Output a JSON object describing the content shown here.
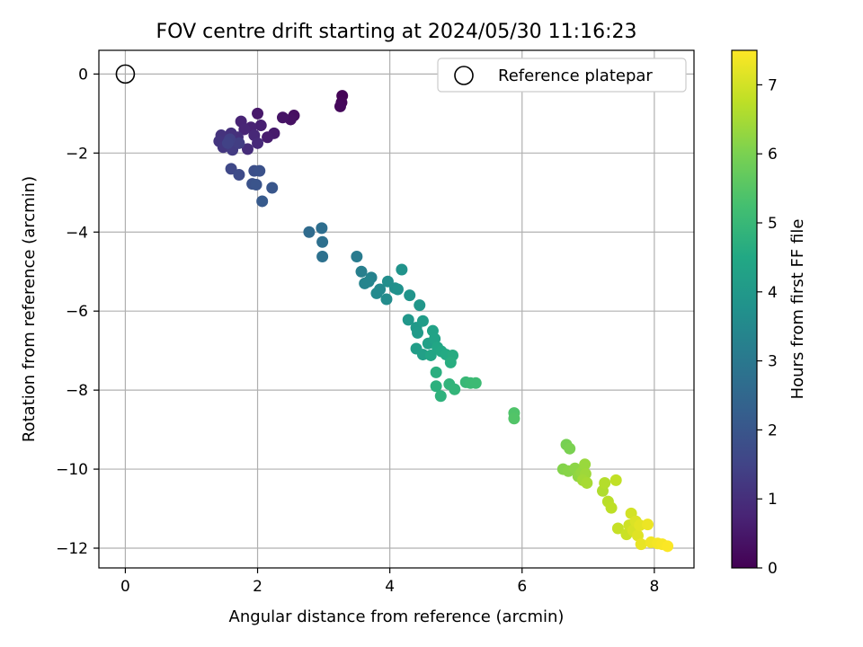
{
  "chart_data": {
    "type": "scatter",
    "title": "FOV centre drift starting at 2024/05/30 11:16:23",
    "xlabel": "Angular distance from reference (arcmin)",
    "ylabel": "Rotation from reference (arcmin)",
    "xlim": [
      -0.4,
      8.6
    ],
    "ylim": [
      -12.5,
      0.6
    ],
    "xticks": [
      0,
      2,
      4,
      6,
      8
    ],
    "yticks": [
      0,
      -2,
      -4,
      -6,
      -8,
      -10,
      -12
    ],
    "xtick_labels": [
      "0",
      "2",
      "4",
      "6",
      "8"
    ],
    "ytick_labels": [
      "0",
      "−2",
      "−4",
      "−6",
      "−8",
      "−10",
      "−12"
    ],
    "grid": true,
    "legend": {
      "placement": "top-right",
      "entries": [
        {
          "label": "Reference platepar",
          "marker": "open-circle"
        }
      ]
    },
    "reference_point": {
      "x": 0,
      "y": 0
    },
    "colorbar": {
      "label": "Hours from first FF file",
      "colormap": "viridis",
      "range": [
        0,
        7.5
      ],
      "ticks": [
        0,
        1,
        2,
        3,
        4,
        5,
        6,
        7
      ],
      "tick_labels": [
        "0",
        "1",
        "2",
        "3",
        "4",
        "5",
        "6",
        "7"
      ]
    },
    "points": [
      [
        3.28,
        -0.55,
        0.05
      ],
      [
        3.27,
        -0.72,
        0.1
      ],
      [
        3.25,
        -0.82,
        0.15
      ],
      [
        2.55,
        -1.05,
        0.3
      ],
      [
        2.5,
        -1.15,
        0.35
      ],
      [
        2.38,
        -1.1,
        0.4
      ],
      [
        2.0,
        -1.0,
        0.5
      ],
      [
        2.25,
        -1.5,
        0.55
      ],
      [
        2.15,
        -1.6,
        0.6
      ],
      [
        2.05,
        -1.3,
        0.65
      ],
      [
        1.9,
        -1.35,
        0.7
      ],
      [
        1.75,
        -1.2,
        0.75
      ],
      [
        1.8,
        -1.4,
        0.8
      ],
      [
        1.95,
        -1.55,
        0.85
      ],
      [
        2.0,
        -1.75,
        0.9
      ],
      [
        1.85,
        -1.9,
        0.95
      ],
      [
        1.7,
        -1.6,
        1.0
      ],
      [
        1.6,
        -1.5,
        1.05
      ],
      [
        1.45,
        -1.55,
        1.1
      ],
      [
        1.42,
        -1.7,
        1.15
      ],
      [
        1.48,
        -1.85,
        1.2
      ],
      [
        1.62,
        -1.92,
        1.3
      ],
      [
        1.72,
        -1.75,
        1.35
      ],
      [
        1.58,
        -1.65,
        1.4
      ],
      [
        1.55,
        -1.75,
        1.45
      ],
      [
        1.6,
        -2.4,
        1.6
      ],
      [
        1.72,
        -2.55,
        1.7
      ],
      [
        1.95,
        -2.45,
        1.8
      ],
      [
        2.03,
        -2.45,
        1.85
      ],
      [
        1.92,
        -2.78,
        1.9
      ],
      [
        1.98,
        -2.8,
        1.95
      ],
      [
        2.22,
        -2.88,
        2.0
      ],
      [
        2.07,
        -3.22,
        2.1
      ],
      [
        2.78,
        -4.0,
        2.6
      ],
      [
        2.97,
        -3.9,
        2.7
      ],
      [
        2.98,
        -4.25,
        2.75
      ],
      [
        2.98,
        -4.62,
        2.8
      ],
      [
        3.5,
        -4.62,
        3.1
      ],
      [
        3.57,
        -5.0,
        3.2
      ],
      [
        3.72,
        -5.15,
        3.3
      ],
      [
        3.62,
        -5.3,
        3.35
      ],
      [
        3.68,
        -5.25,
        3.4
      ],
      [
        3.85,
        -5.45,
        3.5
      ],
      [
        3.8,
        -5.55,
        3.55
      ],
      [
        3.95,
        -5.7,
        3.6
      ],
      [
        3.97,
        -5.25,
        3.65
      ],
      [
        4.08,
        -5.42,
        3.7
      ],
      [
        4.12,
        -5.45,
        3.75
      ],
      [
        4.18,
        -4.95,
        3.8
      ],
      [
        4.3,
        -5.6,
        3.85
      ],
      [
        4.45,
        -5.85,
        3.9
      ],
      [
        4.28,
        -6.22,
        3.95
      ],
      [
        4.4,
        -6.42,
        4.0
      ],
      [
        4.42,
        -6.55,
        4.05
      ],
      [
        4.5,
        -6.25,
        4.1
      ],
      [
        4.4,
        -6.95,
        4.15
      ],
      [
        4.5,
        -7.1,
        4.2
      ],
      [
        4.58,
        -6.82,
        4.25
      ],
      [
        4.65,
        -6.5,
        4.3
      ],
      [
        4.68,
        -6.7,
        4.35
      ],
      [
        4.62,
        -7.12,
        4.4
      ],
      [
        4.72,
        -6.92,
        4.45
      ],
      [
        4.78,
        -7.02,
        4.5
      ],
      [
        4.85,
        -7.1,
        4.55
      ],
      [
        4.95,
        -7.12,
        4.6
      ],
      [
        4.92,
        -7.3,
        4.65
      ],
      [
        4.7,
        -7.55,
        4.7
      ],
      [
        4.7,
        -7.9,
        4.75
      ],
      [
        4.77,
        -8.15,
        4.8
      ],
      [
        4.9,
        -7.85,
        4.85
      ],
      [
        4.98,
        -7.98,
        4.9
      ],
      [
        5.15,
        -7.8,
        5.0
      ],
      [
        5.22,
        -7.82,
        5.05
      ],
      [
        5.3,
        -7.82,
        5.1
      ],
      [
        5.88,
        -8.58,
        5.4
      ],
      [
        5.88,
        -8.72,
        5.45
      ],
      [
        6.67,
        -9.38,
        5.95
      ],
      [
        6.72,
        -9.48,
        6.0
      ],
      [
        6.62,
        -10.0,
        6.1
      ],
      [
        6.7,
        -10.05,
        6.15
      ],
      [
        6.8,
        -9.98,
        6.2
      ],
      [
        6.85,
        -10.18,
        6.25
      ],
      [
        6.9,
        -10.08,
        6.3
      ],
      [
        6.95,
        -9.88,
        6.35
      ],
      [
        6.96,
        -10.12,
        6.4
      ],
      [
        6.92,
        -10.28,
        6.45
      ],
      [
        6.98,
        -10.35,
        6.5
      ],
      [
        7.22,
        -10.55,
        6.6
      ],
      [
        7.25,
        -10.35,
        6.65
      ],
      [
        7.3,
        -10.82,
        6.7
      ],
      [
        7.35,
        -10.98,
        6.75
      ],
      [
        7.42,
        -10.28,
        6.8
      ],
      [
        7.45,
        -11.5,
        6.85
      ],
      [
        7.58,
        -11.65,
        6.9
      ],
      [
        7.62,
        -11.42,
        6.95
      ],
      [
        7.65,
        -11.12,
        7.0
      ],
      [
        7.68,
        -11.55,
        7.05
      ],
      [
        7.72,
        -11.32,
        7.1
      ],
      [
        7.75,
        -11.68,
        7.15
      ],
      [
        7.78,
        -11.42,
        7.2
      ],
      [
        7.8,
        -11.9,
        7.25
      ],
      [
        7.9,
        -11.4,
        7.3
      ],
      [
        7.95,
        -11.85,
        7.35
      ],
      [
        8.05,
        -11.88,
        7.4
      ],
      [
        8.12,
        -11.9,
        7.43
      ],
      [
        8.2,
        -11.95,
        7.48
      ]
    ]
  }
}
